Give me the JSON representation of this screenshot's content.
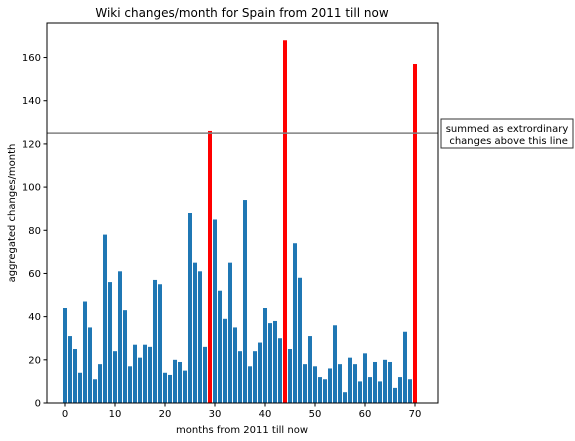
{
  "chart_data": {
    "type": "bar",
    "title": "Wiki changes/month for Spain from 2011 till now",
    "xlabel": "months from 2011 till now",
    "ylabel": "aggregated changes/month",
    "xlim": [
      -3.6,
      74.6
    ],
    "ylim": [
      0,
      176
    ],
    "xticks": [
      0,
      10,
      20,
      30,
      40,
      50,
      60,
      70
    ],
    "yticks": [
      0,
      20,
      40,
      60,
      80,
      100,
      120,
      140,
      160
    ],
    "grid": false,
    "x": [
      0,
      1,
      2,
      3,
      4,
      5,
      6,
      7,
      8,
      9,
      10,
      11,
      12,
      13,
      14,
      15,
      16,
      17,
      18,
      19,
      20,
      21,
      22,
      23,
      24,
      25,
      26,
      27,
      28,
      29,
      30,
      31,
      32,
      33,
      34,
      35,
      36,
      37,
      38,
      39,
      40,
      41,
      42,
      43,
      44,
      45,
      46,
      47,
      48,
      49,
      50,
      51,
      52,
      53,
      54,
      55,
      56,
      57,
      58,
      59,
      60,
      61,
      62,
      63,
      64,
      65,
      66,
      67,
      68,
      69,
      70
    ],
    "values": [
      44,
      31,
      25,
      14,
      47,
      35,
      11,
      18,
      78,
      56,
      24,
      61,
      43,
      17,
      27,
      21,
      27,
      26,
      57,
      55,
      14,
      13,
      20,
      19,
      15,
      88,
      65,
      61,
      26,
      126,
      85,
      52,
      39,
      65,
      35,
      24,
      94,
      17,
      24,
      28,
      44,
      37,
      38,
      30,
      168,
      25,
      74,
      58,
      18,
      31,
      17,
      12,
      11,
      16,
      36,
      18,
      5,
      21,
      18,
      10,
      23,
      12,
      19,
      10,
      20,
      19,
      7,
      12,
      33,
      11,
      157
    ],
    "extraordinary_indices": [
      29,
      44,
      70
    ],
    "threshold": 125,
    "threshold_annotation": [
      "summed as extrordinary",
      " changes above this line"
    ],
    "colors": {
      "normal_bar": "#1f77b4",
      "extraordinary_bar": "#ff0000",
      "threshold_line": "#808080"
    }
  }
}
